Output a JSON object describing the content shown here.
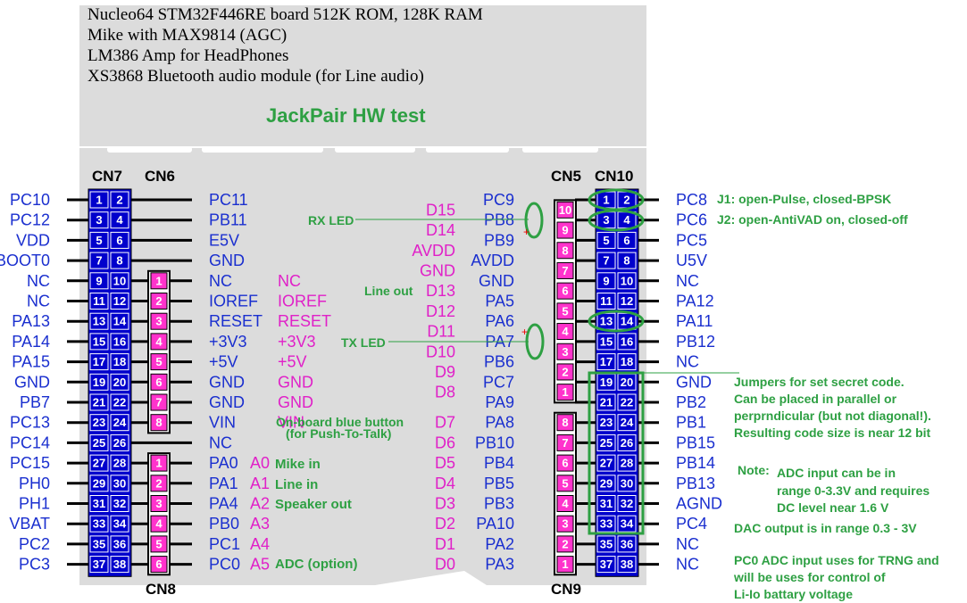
{
  "header_lines": [
    "Nucleo64  STM32F446RE board 512K ROM, 128K RAM",
    "Mike with MAX9814 (AGC)",
    "LM386 Amp for HeadPhones",
    "XS3868 Bluetooth audio module (for Line audio)"
  ],
  "title": "JackPair HW test",
  "connector_labels": {
    "cn7": "CN7",
    "cn6": "CN6",
    "cn8": "CN8",
    "cn5": "CN5",
    "cn10": "CN10",
    "cn9": "CN9"
  },
  "cn7_left": [
    "PC10",
    "PC12",
    "VDD",
    "BOOT0",
    "NC",
    "NC",
    "PA13",
    "PA14",
    "PA15",
    "GND",
    "PB7",
    "PC13",
    "PC14",
    "PC15",
    "PH0",
    "PH1",
    "VBAT",
    "PC2",
    "PC3"
  ],
  "cn7_right": [
    "PC11",
    "PB11",
    "E5V",
    "GND",
    "NC",
    "IOREF",
    "RESET",
    "+3V3",
    "+5V",
    "GND",
    "GND",
    "VIN",
    "NC",
    "PA0",
    "PA1",
    "PA4",
    "PB0",
    "PC1",
    "PC0"
  ],
  "cn6_pins": [
    "1",
    "2",
    "3",
    "4",
    "5",
    "6",
    "7",
    "8"
  ],
  "cn6_arduino": [
    "NC",
    "IOREF",
    "RESET",
    "+3V3",
    "+5V",
    "GND",
    "GND",
    "VIN"
  ],
  "cn8_pins": [
    "1",
    "2",
    "3",
    "4",
    "5",
    "6"
  ],
  "cn8_arduino": [
    "A0",
    "A1",
    "A2",
    "A3",
    "A4",
    "A5"
  ],
  "cn10_right": [
    "PC8",
    "PC6",
    "PC5",
    "U5V",
    "NC",
    "PA12",
    "PA11",
    "PB12",
    "NC",
    "GND",
    "PB2",
    "PB1",
    "PB15",
    "PB14",
    "PB13",
    "AGND",
    "PC4",
    "NC",
    "NC"
  ],
  "cn10_left": [
    "PC9",
    "PB8",
    "PB9",
    "AVDD",
    "GND",
    "PA5",
    "PA6",
    "PA7",
    "PB6",
    "PC7",
    "PA9",
    "PA8",
    "PB10",
    "PB4",
    "PB5",
    "PB3",
    "PA10",
    "PA2",
    "PA3"
  ],
  "cn5_pins": [
    "10",
    "9",
    "8",
    "7",
    "6",
    "5",
    "4",
    "3",
    "2",
    "1"
  ],
  "cn5_arduino": [
    "D15",
    "D14",
    "AVDD",
    "GND",
    "D13",
    "D12",
    "D11",
    "D10",
    "D9",
    "D8"
  ],
  "cn9_pins": [
    "8",
    "7",
    "6",
    "5",
    "4",
    "3",
    "2",
    "1"
  ],
  "cn9_arduino": [
    "D7",
    "D6",
    "D5",
    "D4",
    "D3",
    "D2",
    "D1",
    "D0"
  ],
  "annotations": {
    "j1": "J1: open-Pulse, closed-BPSK",
    "j2": "J2: open-AntiVAD on, closed-off",
    "rx_led": "RX LED",
    "tx_led": "TX LED",
    "line_out": "Line out",
    "button_1": "On-board blue button",
    "button_2": "(for Push-To-Talk)",
    "mike_in": "Mike in",
    "line_in": "Line in",
    "speaker_out": "Speaker out",
    "adc_option": "ADC (option)",
    "jumpers": [
      "Jumpers for set secret code.",
      "Can be placed in parallel or",
      "perprndicular (but not diagonal!).",
      "Resulting code size is near 12 bit"
    ],
    "note_label": "Note:",
    "note": [
      "ADC input can be in",
      "range 0-3.3V and requires",
      "DC level near 1.6 V"
    ],
    "dac": "DAC output is in range 0.3 - 3V",
    "trng": [
      "PC0 ADC input uses for TRNG and",
      "will be uses for control of",
      "Li-Io battary voltage"
    ]
  },
  "colors": {
    "board": "#dcdcdc",
    "header_blue": "#0000cc",
    "header_magenta": "#ff33cc",
    "pin_label_blue": "#1a2fcf",
    "arduino_magenta": "#e020c8",
    "annotation_green": "#2ea043"
  }
}
